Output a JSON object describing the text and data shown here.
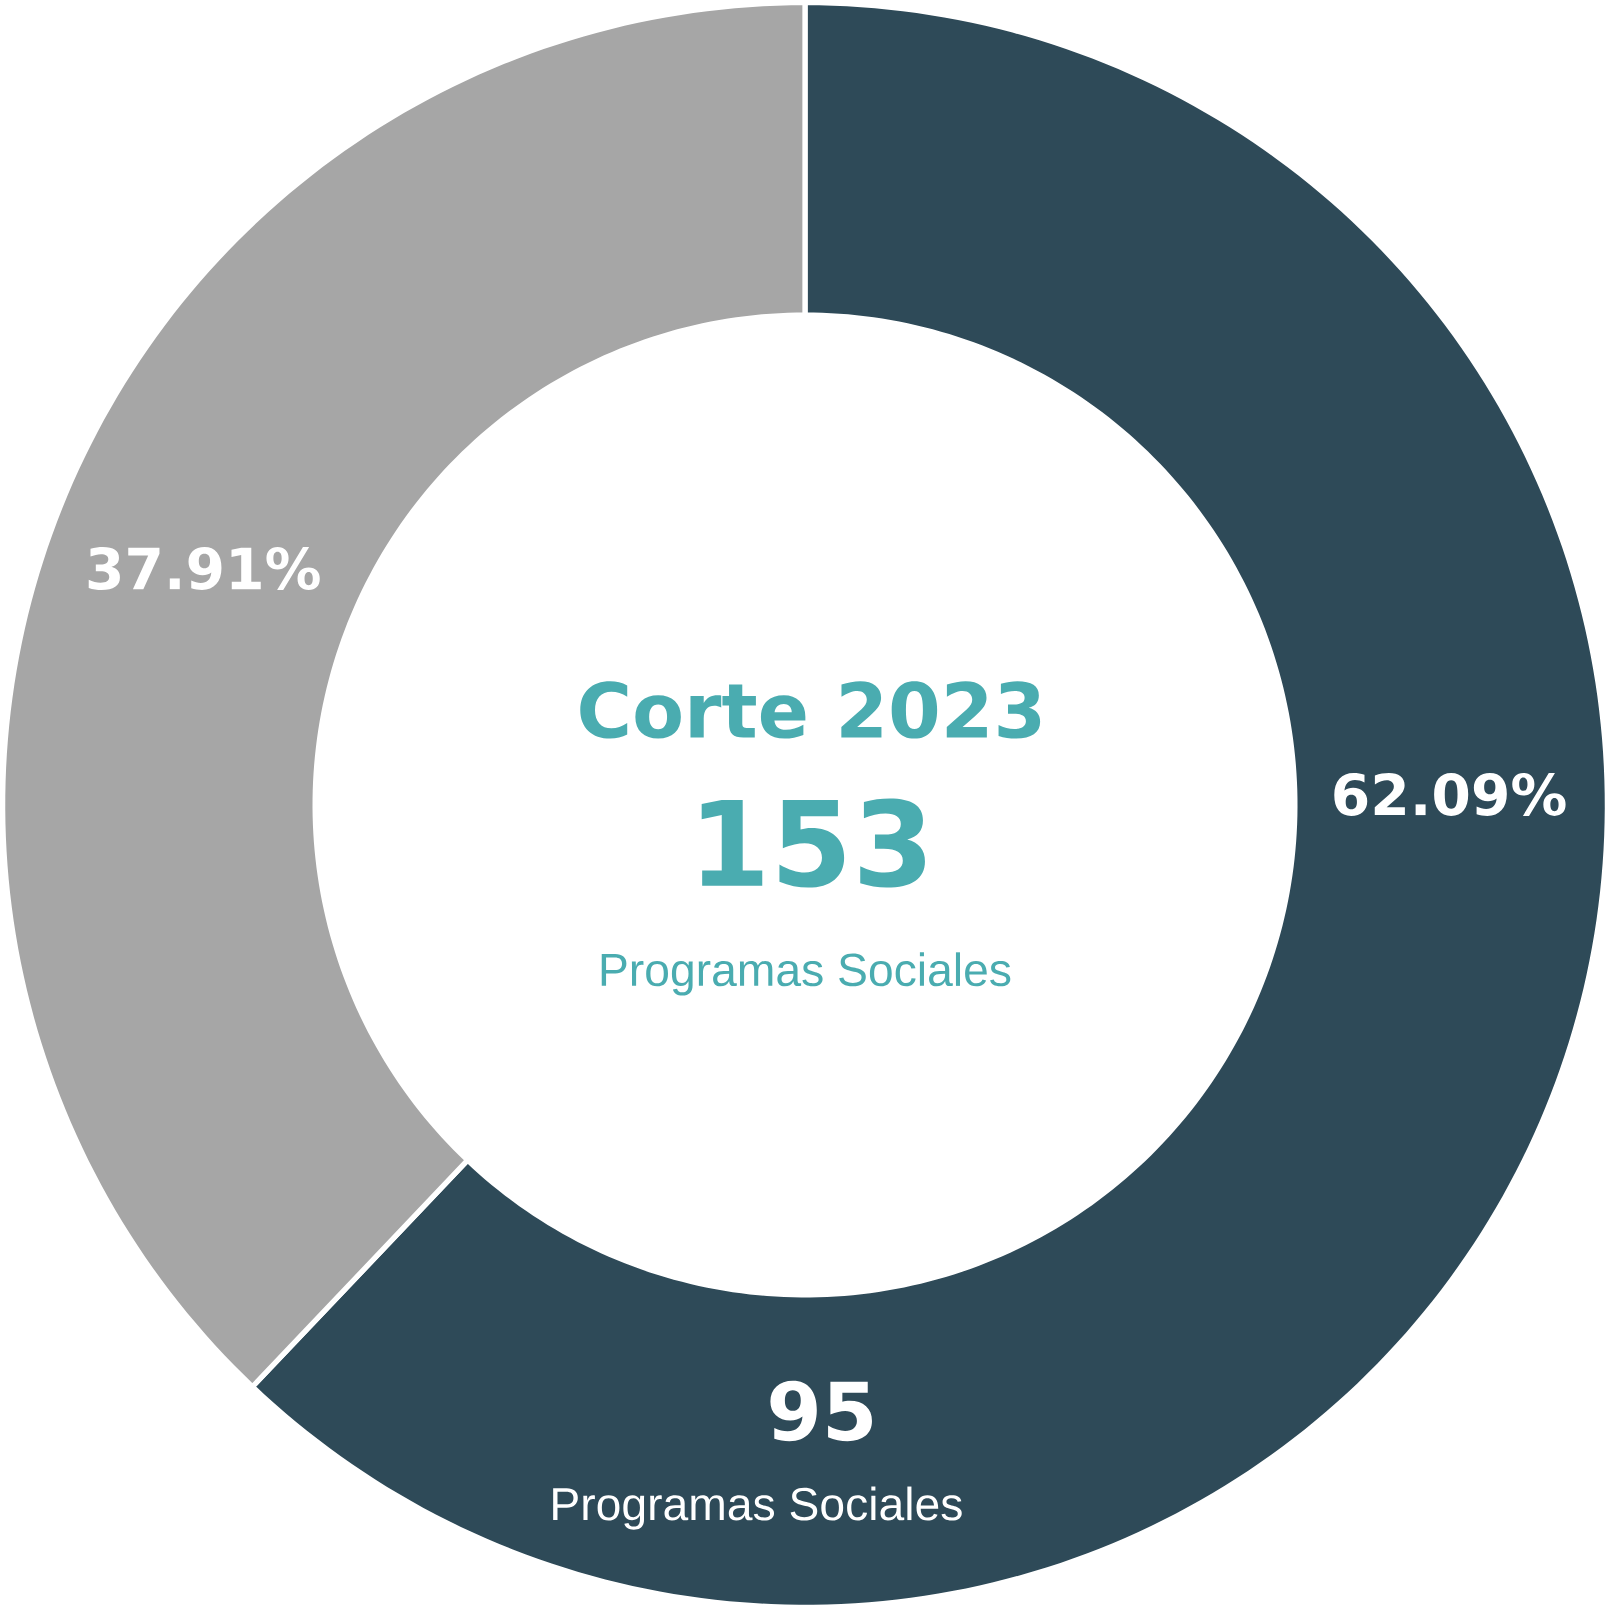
{
  "chart_data": {
    "type": "donut",
    "categories": [
      null,
      null
    ],
    "values": [
      62.09,
      37.91
    ],
    "colors": [
      "#2e4a58",
      "#a6a6a6"
    ],
    "value_labels": [
      "62.09%",
      "37.91%"
    ],
    "annotations": [
      "Corte 2023",
      "153",
      "Programas Sociales",
      "95",
      "Programas Sociales"
    ]
  }
}
